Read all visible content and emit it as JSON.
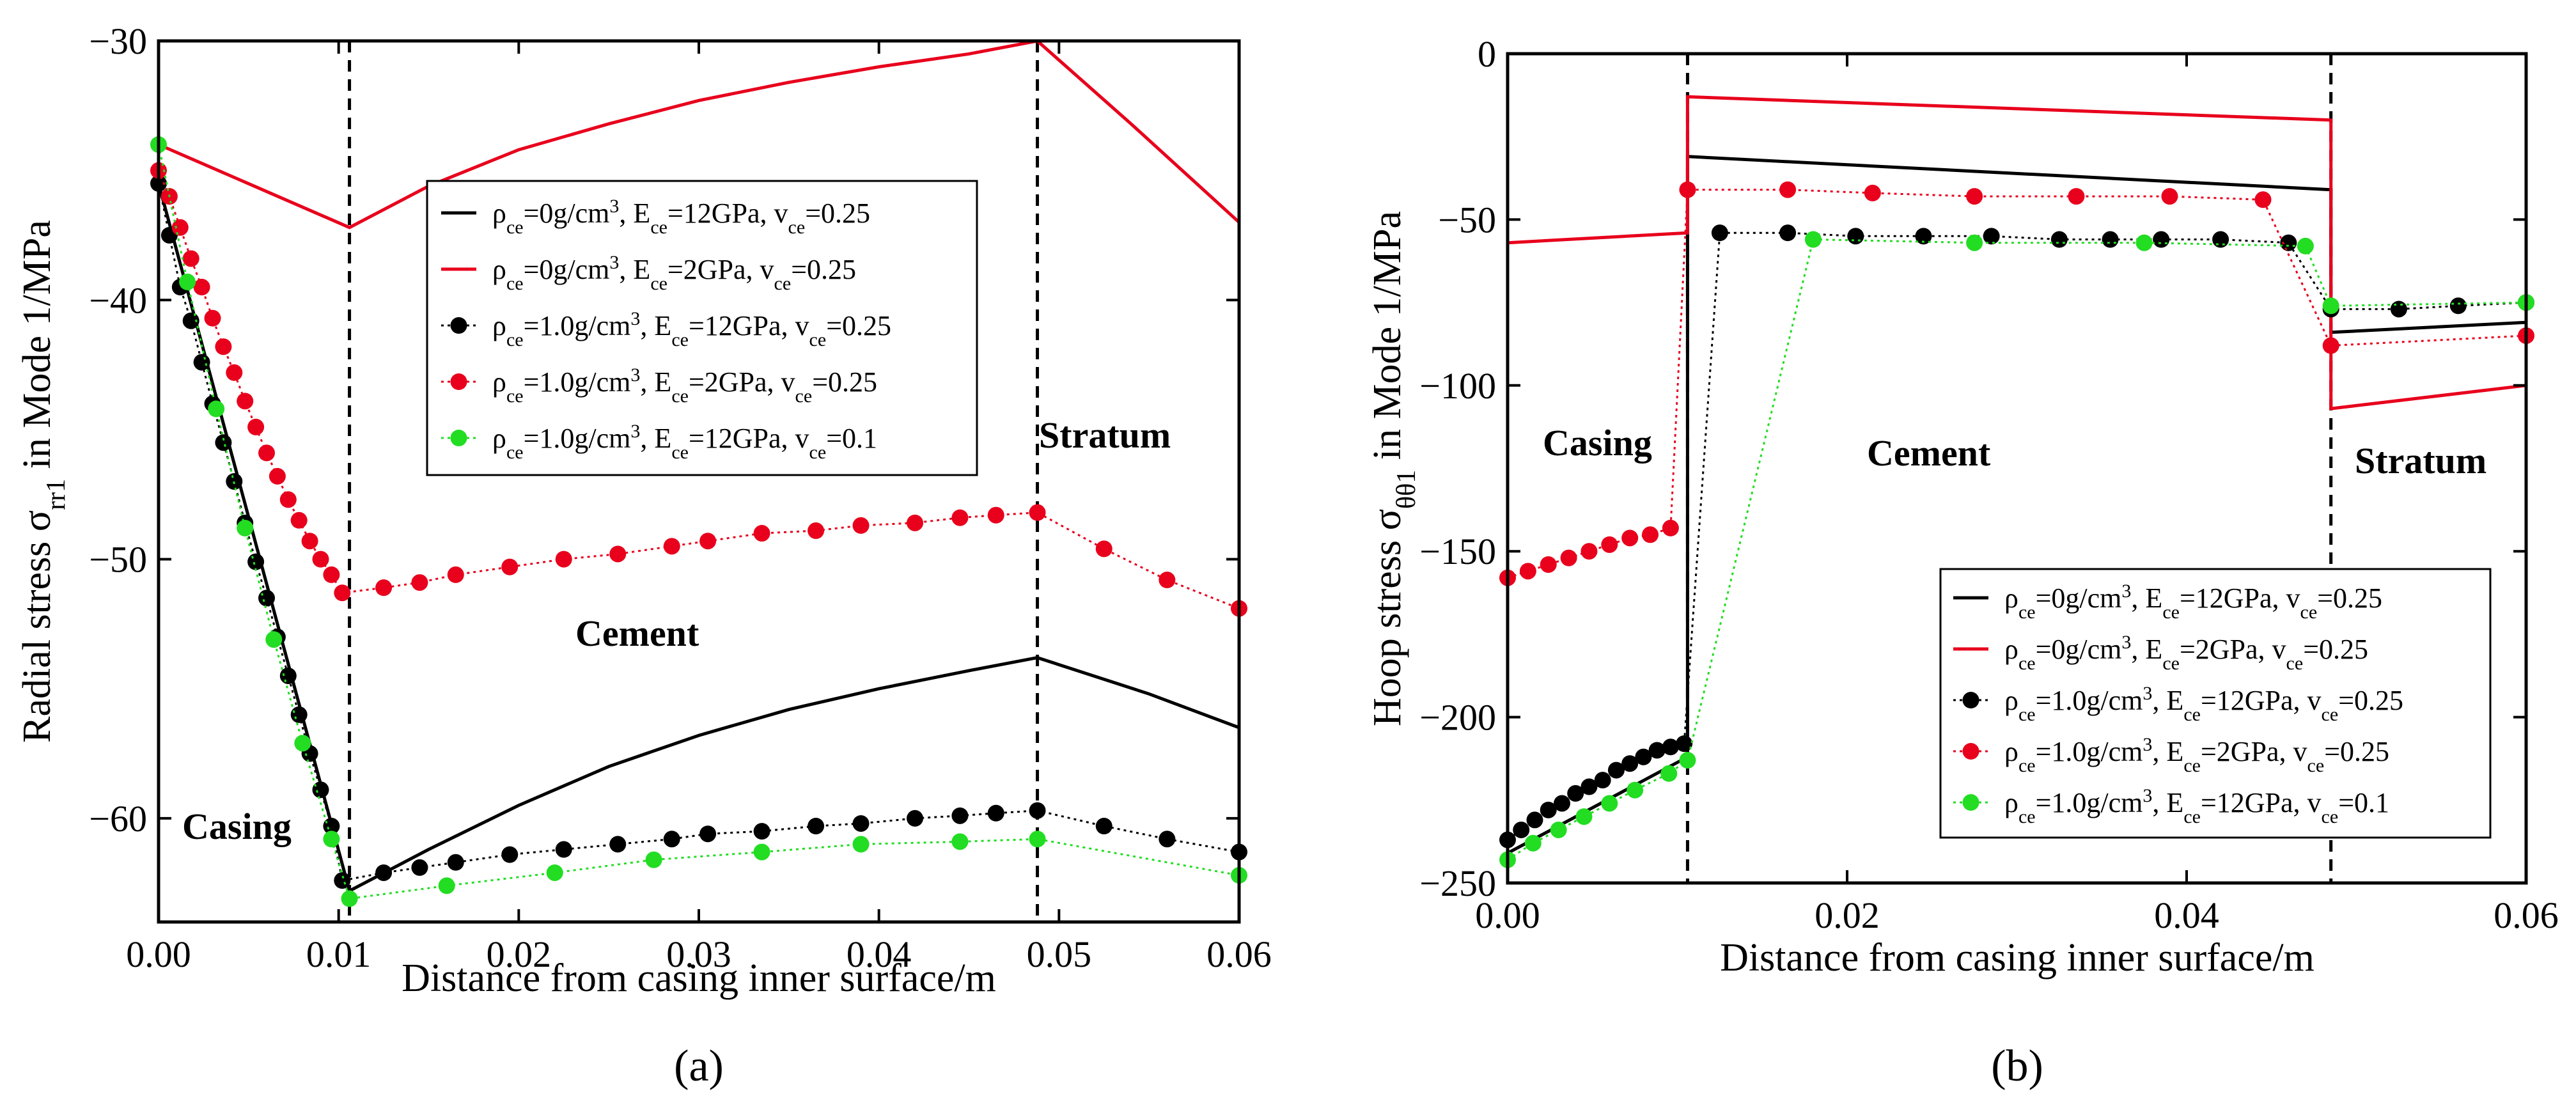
{
  "chart_data": [
    {
      "type": "line",
      "panel_label": "(a)",
      "title": "",
      "xlabel": "Distance from casing inner surface/m",
      "ylabel": "Radial stress σrr1 in Mode 1/MPa",
      "ylabel_parts": {
        "pre": "Radial stress σ",
        "sub": "rr1",
        "post": " in Mode 1/MPa"
      },
      "xlim": [
        0,
        0.06
      ],
      "ylim": [
        -64,
        -30
      ],
      "xticks": [
        0,
        0.01,
        0.02,
        0.03,
        0.04,
        0.05,
        0.06
      ],
      "xtick_labels": [
        "0.00",
        "0.01",
        "0.02",
        "0.03",
        "0.04",
        "0.05",
        "0.06"
      ],
      "yticks": [
        -60,
        -50,
        -40,
        -30
      ],
      "ytick_labels": [
        "−60",
        "−50",
        "−40",
        "−30"
      ],
      "vlines": [
        0.0106,
        0.0488
      ],
      "region_labels": [
        "Casing",
        "Cement",
        "Stratum"
      ],
      "series": [
        {
          "name": "ρce=0g/cm3, Ece=12GPa, vce=0.25",
          "color": "#000000",
          "style": "solid",
          "marker": "none",
          "x": [
            0,
            0.0106,
            0.015,
            0.02,
            0.025,
            0.03,
            0.035,
            0.04,
            0.045,
            0.0488,
            0.055,
            0.06
          ],
          "y": [
            -35.5,
            -62.8,
            -61.2,
            -59.5,
            -58.0,
            -56.8,
            -55.8,
            -55.0,
            -54.3,
            -53.8,
            -55.2,
            -56.5
          ]
        },
        {
          "name": "ρce=0g/cm3, Ece=2GPa, vce=0.25",
          "color": "#e8001c",
          "style": "solid",
          "marker": "none",
          "x": [
            0,
            0.0106,
            0.015,
            0.02,
            0.025,
            0.03,
            0.035,
            0.04,
            0.045,
            0.0488,
            0.054,
            0.06
          ],
          "y": [
            -34.0,
            -37.2,
            -35.6,
            -34.2,
            -33.2,
            -32.3,
            -31.6,
            -31.0,
            -30.5,
            -30.0,
            -33.2,
            -37.0
          ]
        },
        {
          "name": "ρce=1.0g/cm3, Ece=12GPa, vce=0.25",
          "color": "#000000",
          "style": "dotted",
          "marker": "circle",
          "x": [
            0,
            0.0006,
            0.0012,
            0.0018,
            0.0024,
            0.003,
            0.0036,
            0.0042,
            0.0048,
            0.0054,
            0.006,
            0.0066,
            0.0072,
            0.0078,
            0.0084,
            0.009,
            0.0096,
            0.0102,
            0.0125,
            0.0145,
            0.0165,
            0.0195,
            0.0225,
            0.0255,
            0.0285,
            0.0305,
            0.0335,
            0.0365,
            0.039,
            0.042,
            0.0445,
            0.0465,
            0.0488,
            0.0525,
            0.056,
            0.06
          ],
          "y": [
            -35.5,
            -37.5,
            -39.5,
            -40.8,
            -42.4,
            -44.0,
            -45.5,
            -47.0,
            -48.6,
            -50.1,
            -51.5,
            -53.0,
            -54.5,
            -56.0,
            -57.5,
            -58.9,
            -60.3,
            -62.4,
            -62.1,
            -61.9,
            -61.7,
            -61.4,
            -61.2,
            -61.0,
            -60.8,
            -60.6,
            -60.5,
            -60.3,
            -60.2,
            -60.0,
            -59.9,
            -59.8,
            -59.7,
            -60.3,
            -60.8,
            -61.3
          ]
        },
        {
          "name": "ρce=1.0g/cm3, Ece=2GPa, vce=0.25",
          "color": "#e8001c",
          "style": "dotted",
          "marker": "circle",
          "x": [
            0,
            0.0006,
            0.0012,
            0.0018,
            0.0024,
            0.003,
            0.0036,
            0.0042,
            0.0048,
            0.0054,
            0.006,
            0.0066,
            0.0072,
            0.0078,
            0.0084,
            0.009,
            0.0096,
            0.0102,
            0.0125,
            0.0145,
            0.0165,
            0.0195,
            0.0225,
            0.0255,
            0.0285,
            0.0305,
            0.0335,
            0.0365,
            0.039,
            0.042,
            0.0445,
            0.0465,
            0.0488,
            0.0525,
            0.056,
            0.06
          ],
          "y": [
            -35.0,
            -36.0,
            -37.2,
            -38.4,
            -39.5,
            -40.7,
            -41.8,
            -42.8,
            -43.9,
            -44.9,
            -45.9,
            -46.8,
            -47.7,
            -48.5,
            -49.3,
            -50.0,
            -50.6,
            -51.3,
            -51.1,
            -50.9,
            -50.6,
            -50.3,
            -50.0,
            -49.8,
            -49.5,
            -49.3,
            -49.0,
            -48.9,
            -48.7,
            -48.6,
            -48.4,
            -48.3,
            -48.2,
            -49.6,
            -50.8,
            -51.9
          ]
        },
        {
          "name": "ρce=1.0g/cm3, Ece=12GPa, vce=0.1",
          "color": "#22dd22",
          "style": "dotted",
          "marker": "circle",
          "x": [
            0,
            0.0016,
            0.0032,
            0.0048,
            0.0064,
            0.008,
            0.0096,
            0.0106,
            0.016,
            0.022,
            0.0275,
            0.0335,
            0.039,
            0.0445,
            0.0488,
            0.06
          ],
          "y": [
            -34.0,
            -39.3,
            -44.2,
            -48.8,
            -53.1,
            -57.1,
            -60.8,
            -63.1,
            -62.6,
            -62.1,
            -61.6,
            -61.3,
            -61.0,
            -60.9,
            -60.8,
            -62.2
          ]
        }
      ]
    },
    {
      "type": "line",
      "panel_label": "(b)",
      "title": "",
      "xlabel": "Distance from casing inner surface/m",
      "ylabel": "Hoop stress σθθ1 in Mode 1/MPa",
      "ylabel_parts": {
        "pre": "Hoop stress σ",
        "sub": "θθ1",
        "post": " in Mode 1/MPa"
      },
      "xlim": [
        0,
        0.06
      ],
      "ylim": [
        -250,
        0
      ],
      "xticks": [
        0,
        0.02,
        0.04,
        0.06
      ],
      "xtick_labels": [
        "0.00",
        "0.02",
        "0.04",
        "0.06"
      ],
      "yticks": [
        -250,
        -200,
        -150,
        -100,
        -50,
        0
      ],
      "ytick_labels": [
        "−250",
        "−200",
        "−150",
        "−100",
        "−50",
        "0"
      ],
      "vlines": [
        0.0106,
        0.0485
      ],
      "region_labels": [
        "Casing",
        "Cement",
        "Stratum"
      ],
      "series": [
        {
          "name": "ρce=0g/cm3, Ece=12GPa, vce=0.25",
          "color": "#000000",
          "style": "solid",
          "marker": "none",
          "x": [
            0,
            0.0106,
            0.0106,
            0.0485,
            0.0485,
            0.06
          ],
          "y": [
            -241,
            -212,
            -31,
            -41,
            -84,
            -81
          ]
        },
        {
          "name": "ρce=0g/cm3, Ece=2GPa, vce=0.25",
          "color": "#e8001c",
          "style": "solid",
          "marker": "none",
          "x": [
            0,
            0.0106,
            0.0106,
            0.0485,
            0.0485,
            0.06
          ],
          "y": [
            -57,
            -54,
            -13,
            -20,
            -107,
            -100
          ]
        },
        {
          "name": "ρce=1.0g/cm3, Ece=12GPa, vce=0.25",
          "color": "#000000",
          "style": "dotted",
          "marker": "circle",
          "x": [
            0,
            0.0008,
            0.0016,
            0.0024,
            0.0032,
            0.004,
            0.0048,
            0.0056,
            0.0064,
            0.0072,
            0.008,
            0.0088,
            0.0096,
            0.0104,
            0.0125,
            0.0165,
            0.0205,
            0.0245,
            0.0285,
            0.0325,
            0.0355,
            0.0385,
            0.042,
            0.046,
            0.0485,
            0.0525,
            0.056,
            0.06
          ],
          "y": [
            -237,
            -234,
            -231,
            -228,
            -226,
            -223,
            -221,
            -219,
            -216,
            -214,
            -212,
            -210,
            -209,
            -208,
            -54,
            -54,
            -55,
            -55,
            -55,
            -56,
            -56,
            -56,
            -56,
            -57,
            -77,
            -77,
            -76,
            -75
          ]
        },
        {
          "name": "ρce=1.0g/cm3, Ece=2GPa, vce=0.25",
          "color": "#e8001c",
          "style": "dotted",
          "marker": "circle",
          "x": [
            0,
            0.0012,
            0.0024,
            0.0036,
            0.0048,
            0.006,
            0.0072,
            0.0084,
            0.0096,
            0.0106,
            0.0165,
            0.0215,
            0.0275,
            0.0335,
            0.039,
            0.0445,
            0.0485,
            0.06
          ],
          "y": [
            -158,
            -156,
            -154,
            -152,
            -150,
            -148,
            -146,
            -145,
            -143,
            -41,
            -41,
            -42,
            -43,
            -43,
            -43,
            -44,
            -88,
            -85
          ]
        },
        {
          "name": "ρce=1.0g/cm3, Ece=12GPa, vce=0.1",
          "color": "#22dd22",
          "style": "dotted",
          "marker": "circle",
          "x": [
            0,
            0.0015,
            0.003,
            0.0045,
            0.006,
            0.0075,
            0.0095,
            0.0106,
            0.018,
            0.0275,
            0.0375,
            0.047,
            0.0485,
            0.06
          ],
          "y": [
            -243,
            -238,
            -234,
            -230,
            -226,
            -222,
            -217,
            -213,
            -56,
            -57,
            -57,
            -58,
            -76,
            -75
          ]
        }
      ]
    }
  ]
}
